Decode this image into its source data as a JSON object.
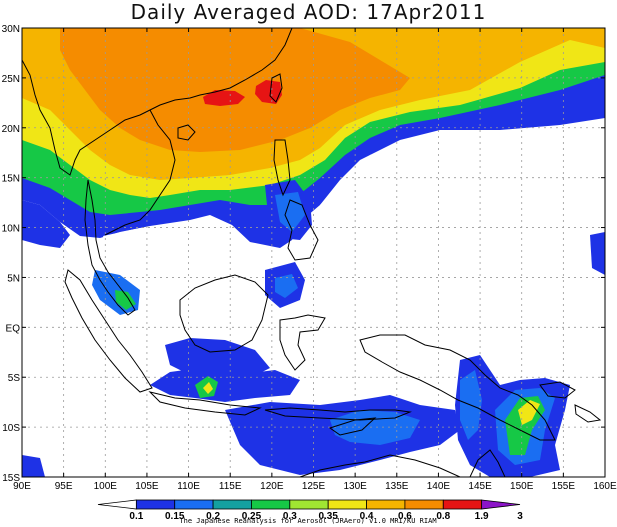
{
  "title": "Daily Averaged AOD: 17Apr2011",
  "map": {
    "lon_labels": [
      "90E",
      "95E",
      "100E",
      "105E",
      "110E",
      "115E",
      "120E",
      "125E",
      "130E",
      "135E",
      "140E",
      "145E",
      "150E",
      "155E",
      "160E"
    ],
    "lat_labels": [
      "30N",
      "25N",
      "20N",
      "15N",
      "10N",
      "5N",
      "EQ",
      "5S",
      "10S",
      "15S"
    ]
  },
  "colorbar": {
    "levels": [
      "0.1",
      "0.15",
      "0.2",
      "0.25",
      "0.3",
      "0.35",
      "0.4",
      "0.6",
      "0.8",
      "1.9",
      "3"
    ],
    "colors": [
      "#ffffff",
      "#1e32e6",
      "#1a6ef2",
      "#14a0a0",
      "#16c846",
      "#a0e632",
      "#f0e616",
      "#f5b400",
      "#f58c00",
      "#e61414",
      "#8c14c8"
    ],
    "credit": "The Japanese Reanalysis for Aerosol (JRAero) v1.0 MRI/KU RIAM"
  },
  "palette": {
    "blue": "#1e32e6",
    "mid_blue": "#1a6ef2",
    "teal": "#14a0a0",
    "green": "#16c846",
    "yellow_green": "#a0e632",
    "yellow": "#f0e616",
    "light_orange": "#f5b400",
    "orange": "#f58c00",
    "red": "#e61414"
  }
}
